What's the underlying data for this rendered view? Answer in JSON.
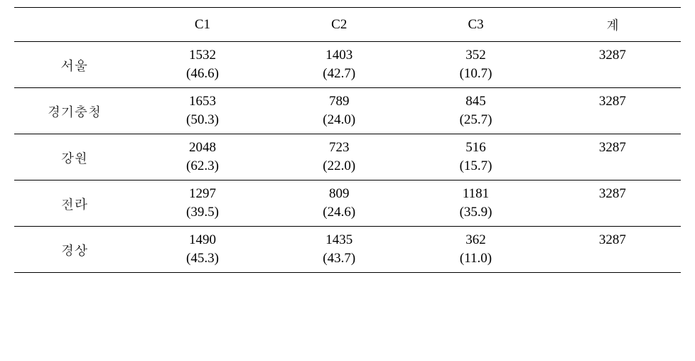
{
  "table": {
    "type": "table",
    "columns": {
      "label": "",
      "c1": "C1",
      "c2": "C2",
      "c3": "C3",
      "total": "계"
    },
    "rows": [
      {
        "label": "서울",
        "c1_val": "1532",
        "c2_val": "1403",
        "c3_val": "352",
        "total": "3287",
        "c1_pct": "(46.6)",
        "c2_pct": "(42.7)",
        "c3_pct": "(10.7)"
      },
      {
        "label": "경기충청",
        "c1_val": "1653",
        "c2_val": "789",
        "c3_val": "845",
        "total": "3287",
        "c1_pct": "(50.3)",
        "c2_pct": "(24.0)",
        "c3_pct": "(25.7)"
      },
      {
        "label": "강원",
        "c1_val": "2048",
        "c2_val": "723",
        "c3_val": "516",
        "total": "3287",
        "c1_pct": "(62.3)",
        "c2_pct": "(22.0)",
        "c3_pct": "(15.7)"
      },
      {
        "label": "전라",
        "c1_val": "1297",
        "c2_val": "809",
        "c3_val": "1181",
        "total": "3287",
        "c1_pct": "(39.5)",
        "c2_pct": "(24.6)",
        "c3_pct": "(35.9)"
      },
      {
        "label": "경상",
        "c1_val": "1490",
        "c2_val": "1435",
        "c3_val": "362",
        "total": "3287",
        "c1_pct": "(45.3)",
        "c2_pct": "(43.7)",
        "c3_pct": "(11.0)"
      }
    ],
    "styles": {
      "border_color": "#000000",
      "background_color": "#ffffff",
      "text_color": "#000000",
      "font_size_pt": 14,
      "font_family": "serif",
      "column_widths_pct": [
        18,
        20.5,
        20.5,
        20.5,
        20.5
      ]
    }
  }
}
